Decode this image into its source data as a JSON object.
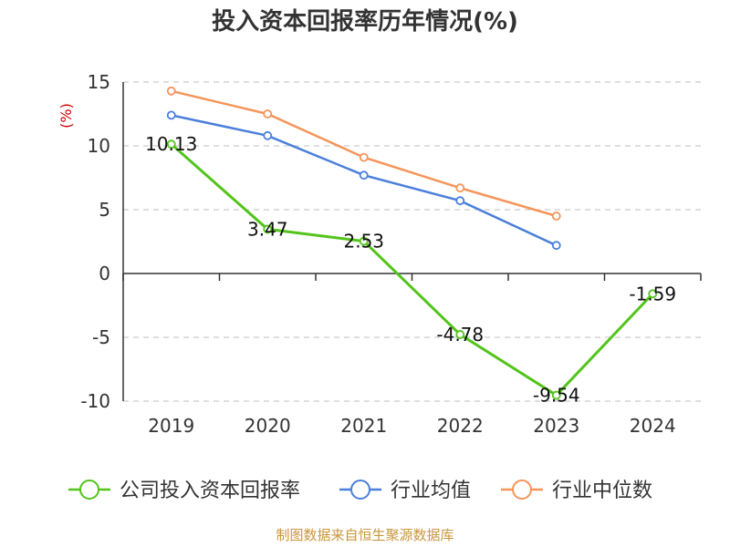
{
  "chart_data": {
    "type": "line",
    "title": "投入资本回报率历年情况(%)",
    "ylabel": "(%)",
    "categories": [
      "2019",
      "2020",
      "2021",
      "2022",
      "2023",
      "2024"
    ],
    "ylim": [
      -10,
      15
    ],
    "yticks": [
      15,
      10,
      5,
      0,
      -5,
      -10
    ],
    "grid": true,
    "legend_position": "bottom",
    "series": [
      {
        "name": "公司投入资本回报率",
        "color": "#52c41a",
        "values": [
          10.13,
          3.47,
          2.53,
          -4.78,
          -9.54,
          -1.59
        ],
        "labels": [
          "10.13",
          "3.47",
          "2.53",
          "-4.78",
          "-9.54",
          "-1.59"
        ]
      },
      {
        "name": "行业均值",
        "color": "#4a7fdb",
        "values": [
          12.4,
          10.8,
          7.7,
          5.7,
          2.2,
          null
        ]
      },
      {
        "name": "行业中位数",
        "color": "#f5955a",
        "values": [
          14.3,
          12.5,
          9.1,
          6.7,
          4.5,
          null
        ]
      }
    ]
  },
  "source": "制图数据来自恒生聚源数据库"
}
